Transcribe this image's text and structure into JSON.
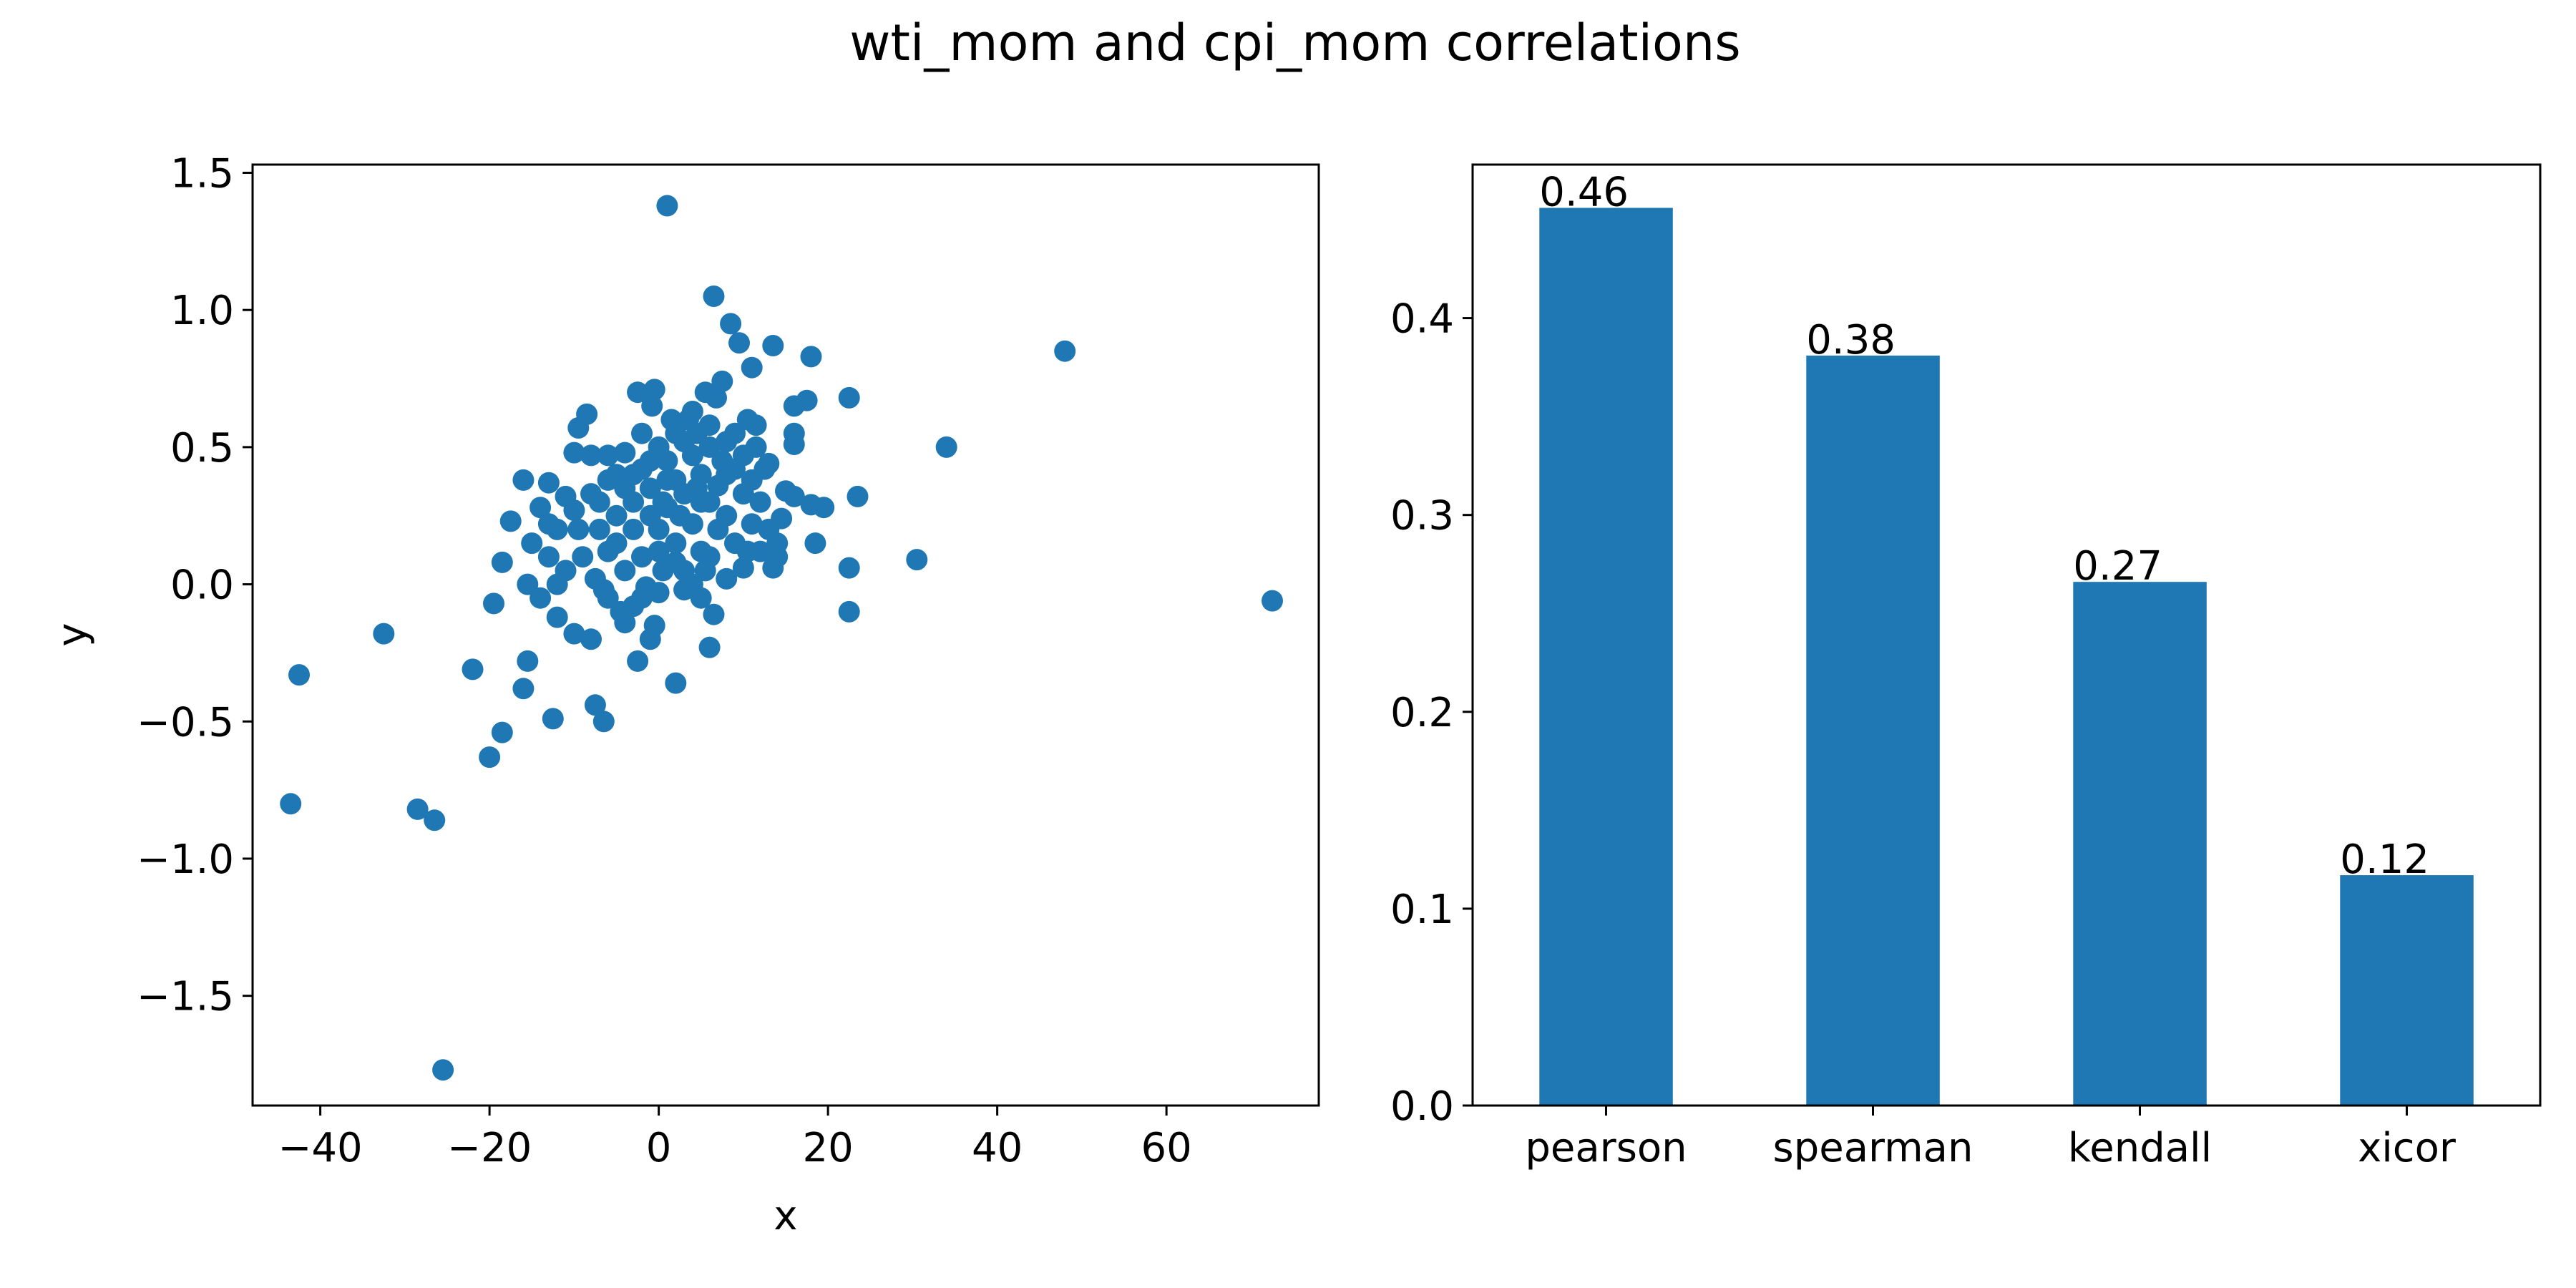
{
  "figure": {
    "title": "wti_mom and cpi_mom correlations"
  },
  "colors": {
    "primary": "#1f77b4",
    "axis": "#000000",
    "background": "#ffffff"
  },
  "chart_data": [
    {
      "type": "scatter",
      "title": "",
      "xlabel": "x",
      "ylabel": "y",
      "xlim": [
        -48,
        78
      ],
      "ylim": [
        -1.9,
        1.53
      ],
      "xticks": [
        -40,
        -20,
        0,
        20,
        40,
        60
      ],
      "xtick_labels": [
        "−40",
        "−20",
        "0",
        "20",
        "40",
        "60"
      ],
      "yticks": [
        -1.5,
        -1.0,
        -0.5,
        0.0,
        0.5,
        1.0,
        1.5
      ],
      "ytick_labels": [
        "−1.5",
        "−1.0",
        "−0.5",
        "0.0",
        "0.5",
        "1.0",
        "1.5"
      ],
      "grid": false,
      "points": [
        [
          1,
          1.38
        ],
        [
          6.5,
          1.05
        ],
        [
          8.5,
          0.95
        ],
        [
          9.5,
          0.88
        ],
        [
          13.5,
          0.87
        ],
        [
          18,
          0.83
        ],
        [
          48,
          0.85
        ],
        [
          22.5,
          0.68
        ],
        [
          16,
          0.65
        ],
        [
          17.5,
          0.67
        ],
        [
          11,
          0.79
        ],
        [
          -8.5,
          0.62
        ],
        [
          -9.5,
          0.57
        ],
        [
          -2.5,
          0.7
        ],
        [
          -0.5,
          0.71
        ],
        [
          -0.8,
          0.65
        ],
        [
          5.5,
          0.7
        ],
        [
          6.8,
          0.68
        ],
        [
          7.5,
          0.74
        ],
        [
          34,
          0.5
        ],
        [
          16,
          0.51
        ],
        [
          16,
          0.55
        ],
        [
          13,
          0.44
        ],
        [
          10.5,
          0.6
        ],
        [
          11.5,
          0.58
        ],
        [
          -10,
          0.48
        ],
        [
          -8,
          0.47
        ],
        [
          -16,
          0.38
        ],
        [
          -13,
          0.37
        ],
        [
          -11,
          0.32
        ],
        [
          -4,
          0.48
        ],
        [
          -6,
          0.47
        ],
        [
          -5,
          0.4
        ],
        [
          -2,
          0.55
        ],
        [
          0,
          0.5
        ],
        [
          2,
          0.55
        ],
        [
          3.5,
          0.6
        ],
        [
          4.5,
          0.55
        ],
        [
          -17.5,
          0.23
        ],
        [
          -15,
          0.15
        ],
        [
          -13,
          0.1
        ],
        [
          -14,
          0.28
        ],
        [
          -12,
          0.2
        ],
        [
          -10,
          0.27
        ],
        [
          -18.5,
          0.08
        ],
        [
          -15.5,
          0.0
        ],
        [
          -19.5,
          -0.07
        ],
        [
          -14,
          -0.05
        ],
        [
          -12,
          -0.12
        ],
        [
          -10,
          -0.18
        ],
        [
          -8,
          -0.2
        ],
        [
          -6.5,
          -0.02
        ],
        [
          -4,
          -0.14
        ],
        [
          -3,
          -0.08
        ],
        [
          -1.5,
          -0.01
        ],
        [
          0.5,
          0.05
        ],
        [
          2,
          0.08
        ],
        [
          4,
          0.0
        ],
        [
          5,
          -0.05
        ],
        [
          6.5,
          -0.11
        ],
        [
          8,
          0.02
        ],
        [
          10,
          0.06
        ],
        [
          12,
          0.12
        ],
        [
          13.5,
          0.06
        ],
        [
          14,
          0.1
        ],
        [
          14.5,
          0.24
        ],
        [
          15,
          0.34
        ],
        [
          18,
          0.29
        ],
        [
          19.5,
          0.28
        ],
        [
          18.5,
          0.15
        ],
        [
          23.5,
          0.32
        ],
        [
          22.5,
          0.06
        ],
        [
          22.5,
          -0.1
        ],
        [
          30.5,
          0.09
        ],
        [
          72.5,
          -0.06
        ],
        [
          -15.5,
          -0.28
        ],
        [
          -16,
          -0.38
        ],
        [
          -22,
          -0.31
        ],
        [
          -20,
          -0.63
        ],
        [
          -18.5,
          -0.54
        ],
        [
          -12.5,
          -0.49
        ],
        [
          -7.5,
          -0.44
        ],
        [
          -6.5,
          -0.5
        ],
        [
          -2.5,
          -0.28
        ],
        [
          -1,
          -0.2
        ],
        [
          -0.5,
          -0.15
        ],
        [
          2,
          -0.36
        ],
        [
          6,
          -0.23
        ],
        [
          -32.5,
          -0.18
        ],
        [
          -42.5,
          -0.33
        ],
        [
          -43.5,
          -0.8
        ],
        [
          -28.5,
          -0.82
        ],
        [
          -26.5,
          -0.86
        ],
        [
          -25.5,
          -1.77
        ],
        [
          -3,
          0.3
        ],
        [
          -1,
          0.35
        ],
        [
          1,
          0.28
        ],
        [
          3,
          0.33
        ],
        [
          5,
          0.4
        ],
        [
          7,
          0.36
        ],
        [
          9,
          0.42
        ],
        [
          -5,
          0.25
        ],
        [
          -7,
          0.2
        ],
        [
          0,
          0.2
        ],
        [
          2,
          0.15
        ],
        [
          4,
          0.22
        ],
        [
          6,
          0.3
        ],
        [
          8,
          0.25
        ],
        [
          10,
          0.33
        ],
        [
          12,
          0.3
        ],
        [
          -2,
          0.1
        ],
        [
          0,
          0.12
        ],
        [
          3,
          0.05
        ],
        [
          5,
          0.12
        ],
        [
          -4,
          0.05
        ],
        [
          -6,
          0.12
        ],
        [
          -8,
          0.33
        ],
        [
          -3,
          0.4
        ],
        [
          1,
          0.45
        ],
        [
          4,
          0.47
        ],
        [
          6,
          0.5
        ],
        [
          8,
          0.52
        ],
        [
          10,
          0.47
        ],
        [
          11,
          0.38
        ],
        [
          -1,
          0.25
        ],
        [
          2,
          0.38
        ],
        [
          5,
          0.3
        ],
        [
          7,
          0.2
        ],
        [
          9,
          0.15
        ],
        [
          11,
          0.22
        ],
        [
          -9,
          0.1
        ],
        [
          -11,
          0.05
        ],
        [
          -6,
          -0.05
        ],
        [
          -2,
          -0.05
        ],
        [
          0,
          -0.03
        ],
        [
          3,
          -0.02
        ],
        [
          1,
          0.38
        ],
        [
          -4,
          0.35
        ],
        [
          6,
          0.1
        ],
        [
          8,
          0.4
        ],
        [
          13,
          0.2
        ],
        [
          12.5,
          0.42
        ],
        [
          -12,
          0.0
        ],
        [
          -7,
          0.3
        ],
        [
          -5,
          0.15
        ],
        [
          1.5,
          0.6
        ],
        [
          4,
          0.63
        ],
        [
          6,
          0.58
        ],
        [
          9,
          0.55
        ],
        [
          -1,
          0.45
        ],
        [
          3,
          0.52
        ],
        [
          -13,
          0.22
        ],
        [
          -3,
          0.2
        ],
        [
          0.5,
          0.3
        ],
        [
          2.5,
          0.25
        ],
        [
          4.5,
          0.35
        ],
        [
          7.5,
          0.45
        ],
        [
          10.5,
          0.12
        ],
        [
          -9.5,
          0.2
        ],
        [
          -6,
          0.38
        ],
        [
          -2,
          0.42
        ],
        [
          5.5,
          0.05
        ],
        [
          -4.5,
          -0.1
        ],
        [
          -7.5,
          0.02
        ],
        [
          14,
          0.15
        ],
        [
          16,
          0.32
        ],
        [
          11.5,
          0.5
        ]
      ]
    },
    {
      "type": "bar",
      "title": "",
      "xlabel": "",
      "ylabel": "",
      "categories": [
        "pearson",
        "spearman",
        "kendall",
        "xicor"
      ],
      "values": [
        0.456,
        0.381,
        0.266,
        0.117
      ],
      "data_labels": [
        "0.46",
        "0.38",
        "0.27",
        "0.12"
      ],
      "ylim": [
        0,
        0.478
      ],
      "yticks": [
        0.0,
        0.1,
        0.2,
        0.3,
        0.4
      ],
      "ytick_labels": [
        "0.0",
        "0.1",
        "0.2",
        "0.3",
        "0.4"
      ],
      "grid": false,
      "legend": "none"
    }
  ]
}
